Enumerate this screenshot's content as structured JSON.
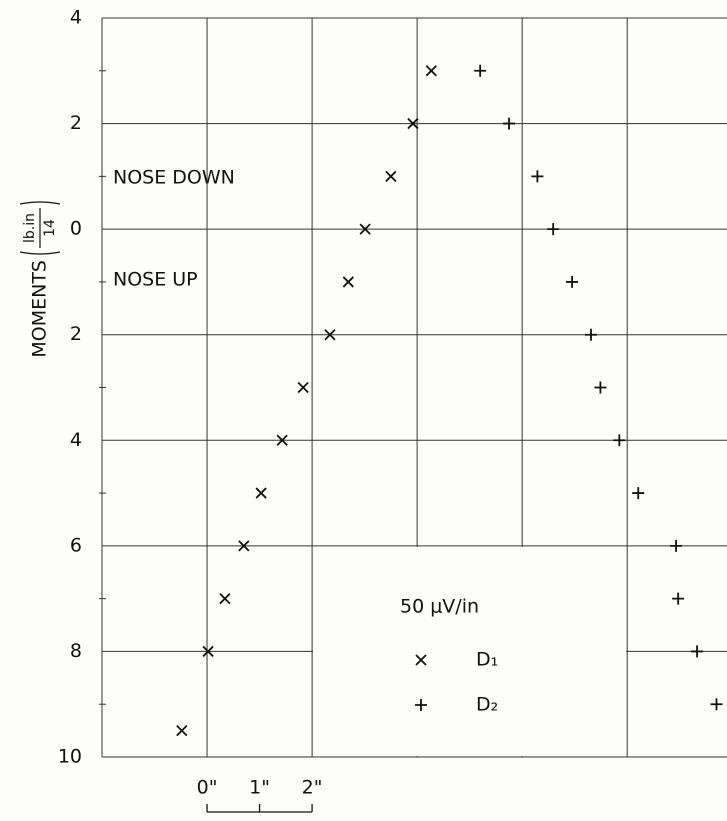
{
  "chart_data": {
    "type": "scatter",
    "ylabel": {
      "text": "MOMENTS",
      "numerator": "lb.in",
      "denominator": "14"
    },
    "annotations": [
      "NOSE DOWN",
      "NOSE UP",
      "50 μV/in"
    ],
    "series": [
      {
        "name": "D₁",
        "marker": "x",
        "color": "#111111",
        "x": [
          -0.48,
          0.02,
          0.34,
          0.7,
          1.03,
          1.43,
          1.83,
          2.34,
          2.69,
          3.01,
          3.5,
          3.92,
          4.27
        ],
        "values": [
          -9.5,
          -8,
          -7,
          -6,
          -5,
          -4,
          -3,
          -2,
          -1,
          0,
          1,
          2,
          3
        ]
      },
      {
        "name": "D₂",
        "marker": "+",
        "color": "#111111",
        "x": [
          5.2,
          5.75,
          6.29,
          6.59,
          6.95,
          7.31,
          7.49,
          7.85,
          8.21,
          8.93,
          8.97,
          9.33,
          9.7
        ],
        "values": [
          3,
          2,
          1,
          0,
          -1,
          -2,
          -3,
          -4,
          -5,
          -6,
          -7,
          -8,
          -9
        ]
      }
    ],
    "xlim": [
      -2,
      9.9
    ],
    "ylim": [
      -10,
      4
    ],
    "xticks": [
      {
        "value": 0,
        "label": "0\""
      },
      {
        "value": 1,
        "label": "1\""
      },
      {
        "value": 2,
        "label": "2\""
      }
    ],
    "xgrid": [
      0,
      2,
      4,
      6,
      8
    ],
    "yticks": [
      4,
      2,
      0,
      {
        "value": -2,
        "label": "2"
      },
      {
        "value": -4,
        "label": "4"
      },
      {
        "value": -6,
        "label": "6"
      },
      {
        "value": -8,
        "label": "8"
      },
      {
        "value": -10,
        "label": "10"
      }
    ],
    "yminor": [
      3,
      1,
      -1,
      -3,
      -5,
      -7,
      -9
    ],
    "grid": true
  }
}
